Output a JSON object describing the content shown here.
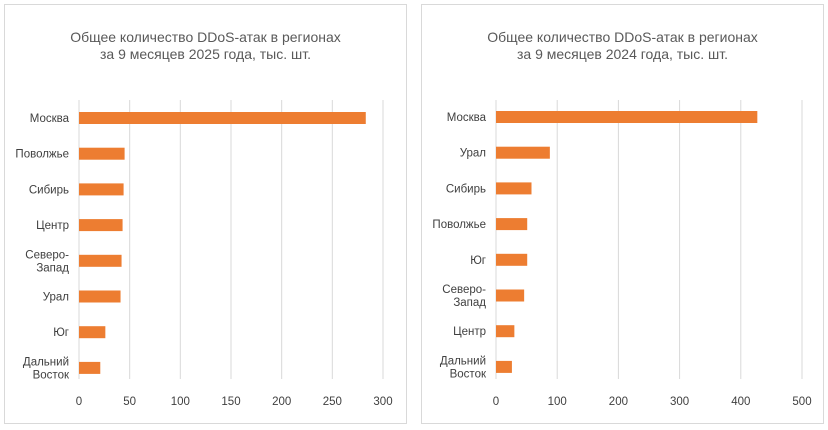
{
  "chart_data": [
    {
      "type": "bar",
      "orientation": "horizontal",
      "title_lines": [
        "Общее количество DDoS-атак в регионах",
        "за 9 месяцев 2025 года, тыс. шт."
      ],
      "categories": [
        [
          "Москва"
        ],
        [
          "Поволжье"
        ],
        [
          "Сибирь"
        ],
        [
          "Центр"
        ],
        [
          "Северо-",
          "Запад"
        ],
        [
          "Урал"
        ],
        [
          "Юг"
        ],
        [
          "Дальний",
          "Восток"
        ]
      ],
      "values": [
        283,
        45,
        44,
        43,
        42,
        41,
        26,
        21
      ],
      "xlim": [
        0,
        300
      ],
      "xticks": [
        0,
        50,
        100,
        150,
        200,
        250,
        300
      ],
      "grid": "vertical",
      "bar_color": "#ed7d31"
    },
    {
      "type": "bar",
      "orientation": "horizontal",
      "title_lines": [
        "Общее количество DDoS-атак в регионах",
        "за 9 месяцев 2024 года, тыс. шт."
      ],
      "categories": [
        [
          "Москва"
        ],
        [
          "Урал"
        ],
        [
          "Сибирь"
        ],
        [
          "Поволжье"
        ],
        [
          "Юг"
        ],
        [
          "Северо-",
          "Запад"
        ],
        [
          "Центр"
        ],
        [
          "Дальний",
          "Восток"
        ]
      ],
      "values": [
        427,
        88,
        58,
        51,
        51,
        46,
        30,
        26
      ],
      "xlim": [
        0,
        500
      ],
      "xticks": [
        0,
        100,
        200,
        300,
        400,
        500
      ],
      "grid": "vertical",
      "bar_color": "#ed7d31"
    }
  ]
}
